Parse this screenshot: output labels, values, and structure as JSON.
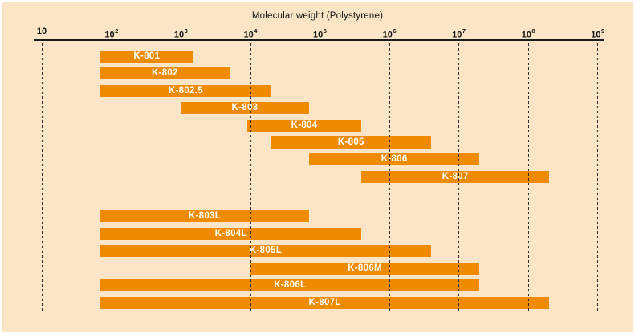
{
  "title": "Molecular weight (Polystyrene)",
  "colors": {
    "background": "#FAE5C7",
    "bar": "#EE8B00",
    "bar_text": "#FFFFFF",
    "axis": "#1A1A1A",
    "grid": "#2B2B2B",
    "frame": "#FFFFFF"
  },
  "axis": {
    "scale": "log10",
    "ticks": [
      {
        "base": "10",
        "exp_label": "",
        "exp": 1
      },
      {
        "base": "10",
        "exp_label": "2",
        "exp": 2
      },
      {
        "base": "10",
        "exp_label": "3",
        "exp": 3
      },
      {
        "base": "10",
        "exp_label": "4",
        "exp": 4
      },
      {
        "base": "10",
        "exp_label": "5",
        "exp": 5
      },
      {
        "base": "10",
        "exp_label": "6",
        "exp": 6
      },
      {
        "base": "10",
        "exp_label": "7",
        "exp": 7
      },
      {
        "base": "10",
        "exp_label": "8",
        "exp": 8
      },
      {
        "base": "10",
        "exp_label": "9",
        "exp": 9
      }
    ]
  },
  "chart_data": {
    "type": "bar",
    "orientation": "horizontal-range",
    "title": "Molecular weight (Polystyrene)",
    "xlabel": "Molecular weight (Polystyrene)",
    "x_scale": "log",
    "xlim": [
      10,
      1000000000
    ],
    "grid": "vertical dashed lines at each decade",
    "legend": "none",
    "series": [
      {
        "name": "K-801",
        "group": 1,
        "range": [
          70,
          1500
        ]
      },
      {
        "name": "K-802",
        "group": 1,
        "range": [
          70,
          5000
        ]
      },
      {
        "name": "K-802.5",
        "group": 1,
        "range": [
          70,
          20000
        ]
      },
      {
        "name": "K-803",
        "group": 1,
        "range": [
          1000,
          70000
        ]
      },
      {
        "name": "K-804",
        "group": 1,
        "range": [
          9000,
          400000
        ]
      },
      {
        "name": "K-805",
        "group": 1,
        "range": [
          20000,
          4000000
        ]
      },
      {
        "name": "K-806",
        "group": 1,
        "range": [
          70000,
          20000000
        ]
      },
      {
        "name": "K-807",
        "group": 1,
        "range": [
          400000,
          200000000
        ]
      },
      {
        "name": "K-803L",
        "group": 2,
        "range": [
          70,
          70000
        ]
      },
      {
        "name": "K-804L",
        "group": 2,
        "range": [
          70,
          400000
        ]
      },
      {
        "name": "K-805L",
        "group": 2,
        "range": [
          70,
          4000000
        ]
      },
      {
        "name": "K-806M",
        "group": 2,
        "range": [
          10000,
          20000000
        ]
      },
      {
        "name": "K-806L",
        "group": 2,
        "range": [
          70,
          20000000
        ]
      },
      {
        "name": "K-807L",
        "group": 2,
        "range": [
          70,
          200000000
        ]
      }
    ]
  }
}
